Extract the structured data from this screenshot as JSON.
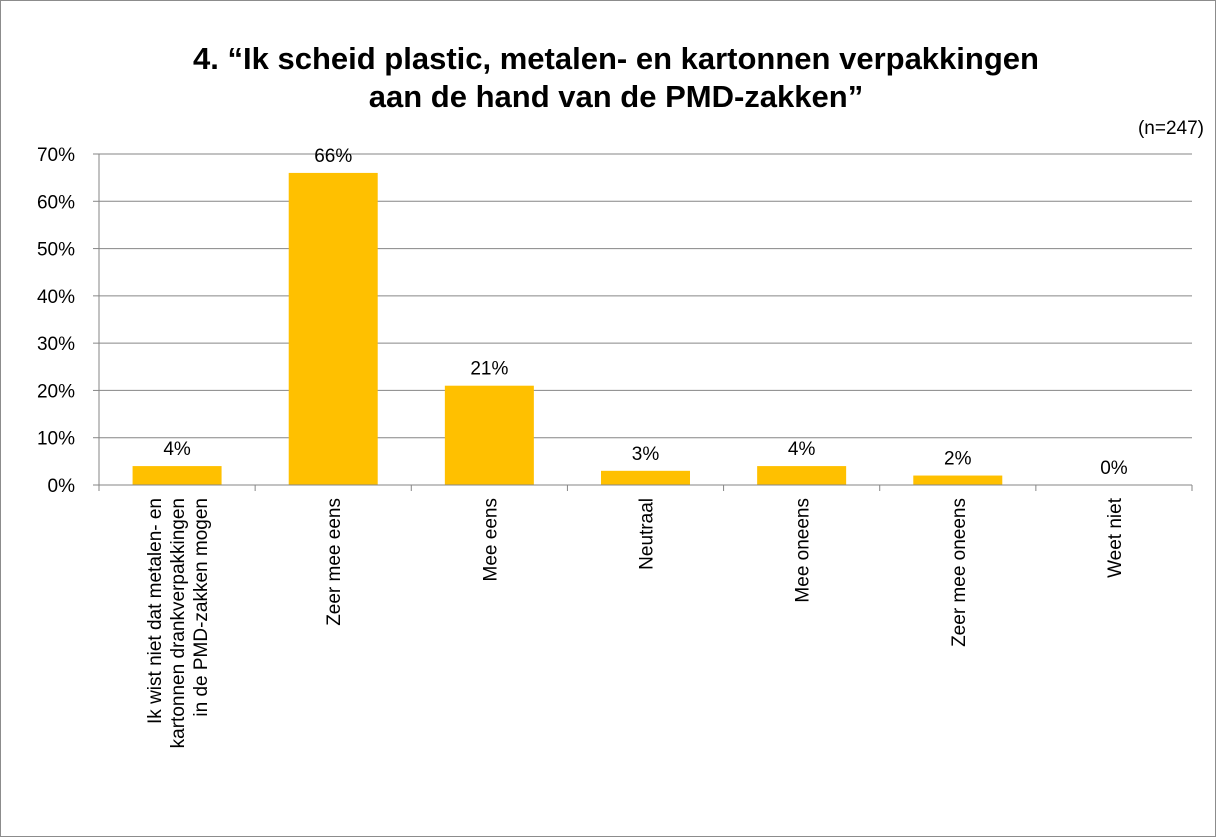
{
  "chart_data": {
    "type": "bar",
    "title_lines": [
      "4. “Ik scheid plastic, metalen- en kartonnen verpakkingen",
      "aan de hand van de PMD-zakken”"
    ],
    "note": "(n=247)",
    "categories": [
      [
        "Ik wist niet dat metalen- en",
        "kartonnen drankverpakkingen",
        "in de PMD-zakken mogen"
      ],
      [
        "Zeer mee eens"
      ],
      [
        "Mee eens"
      ],
      [
        "Neutraal"
      ],
      [
        "Mee oneens"
      ],
      [
        "Zeer mee oneens"
      ],
      [
        "Weet niet"
      ]
    ],
    "values": [
      4,
      66,
      21,
      3,
      4,
      2,
      0
    ],
    "data_labels": [
      "4%",
      "66%",
      "21%",
      "3%",
      "4%",
      "2%",
      "0%"
    ],
    "ylim": [
      0,
      70
    ],
    "yticks": [
      0,
      10,
      20,
      30,
      40,
      50,
      60,
      70
    ],
    "ytick_labels": [
      "0%",
      "10%",
      "20%",
      "30%",
      "40%",
      "50%",
      "60%",
      "70%"
    ],
    "grid": true,
    "bar_color": "#FFC000",
    "gridline_color": "#868686"
  }
}
